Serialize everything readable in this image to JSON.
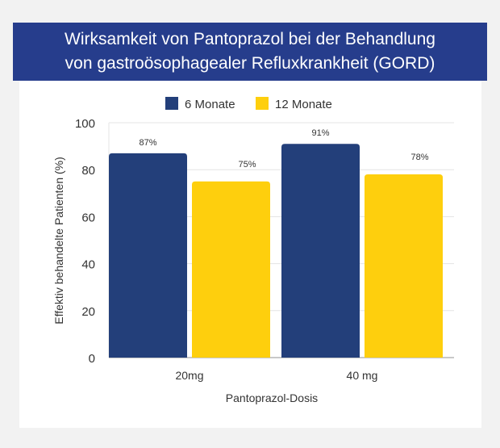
{
  "chart_data": {
    "type": "bar",
    "title_line1": "Wirksamkeit von Pantoprazol bei der Behandlung",
    "title_line2": "von gastroösophagealer Refluxkrankheit (GORD)",
    "xlabel": "Pantoprazol-Dosis",
    "ylabel": "Effektiv behandelte Patienten (%)",
    "categories": [
      "20mg",
      "40 mg"
    ],
    "series": [
      {
        "name": "6 Monate",
        "values": [
          87,
          91
        ],
        "labels": [
          "87%",
          "91%"
        ],
        "color": "#233f7a"
      },
      {
        "name": "12 Monate",
        "values": [
          75,
          78
        ],
        "labels": [
          "75%",
          "78%"
        ],
        "color": "#fecf0d"
      }
    ],
    "yticks": [
      0,
      20,
      40,
      60,
      80,
      100
    ],
    "ylim": [
      0,
      100
    ],
    "grid": true,
    "legend": "top"
  }
}
